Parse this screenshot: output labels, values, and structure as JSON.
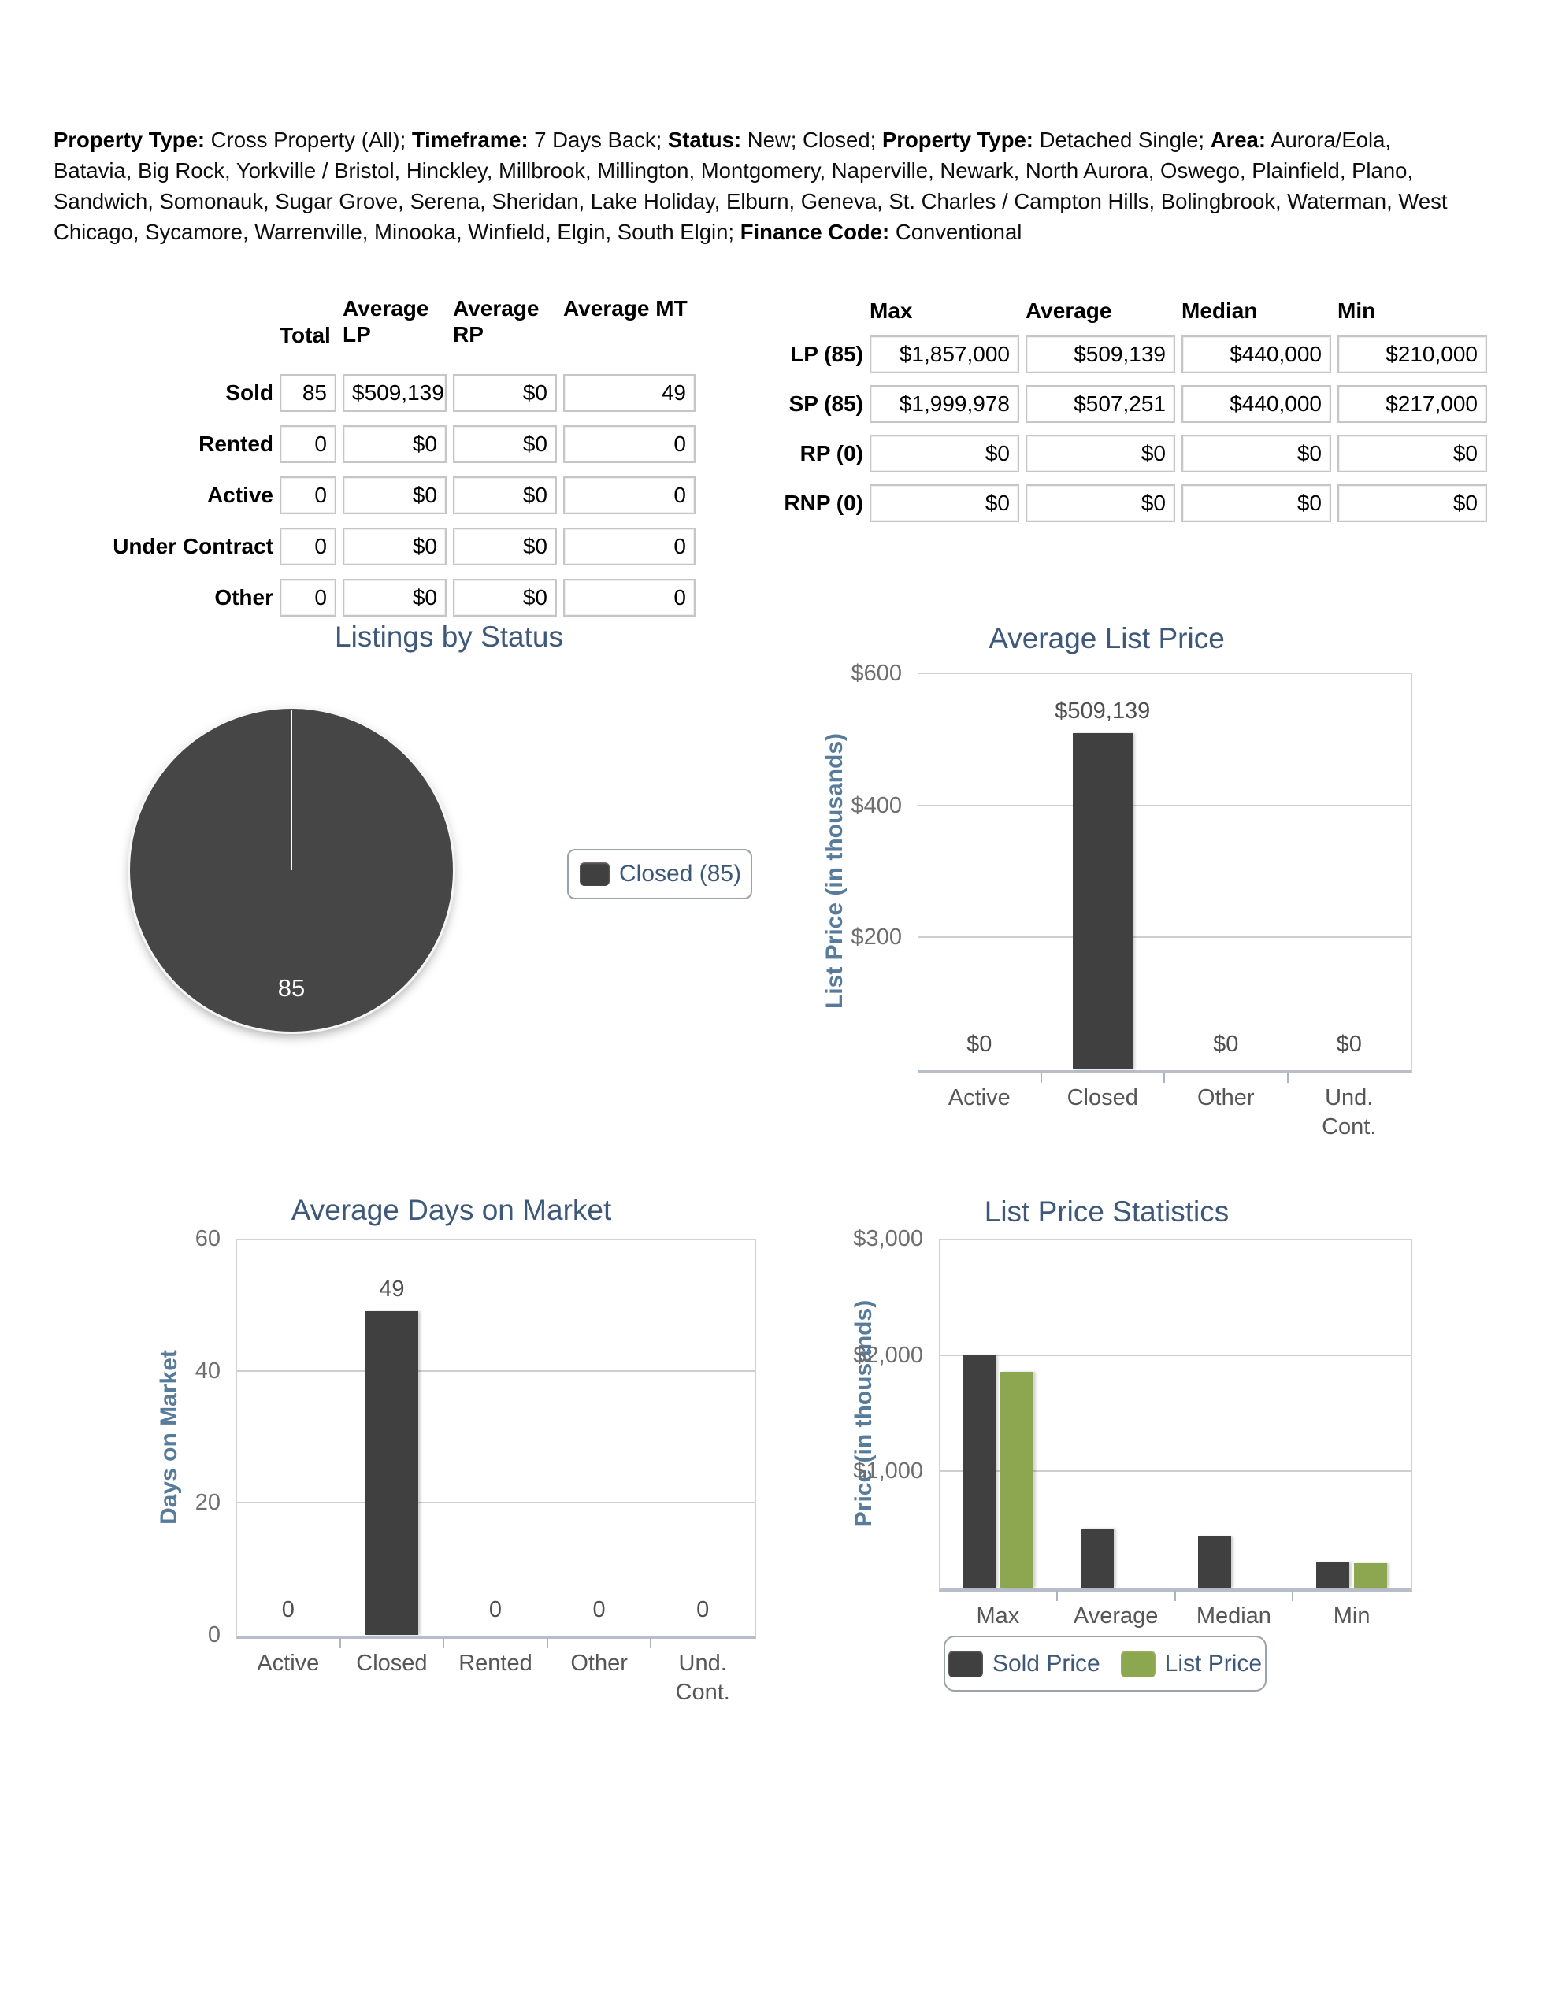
{
  "header": {
    "segments": [
      {
        "label": "Property Type:",
        "value": " Cross Property (All); "
      },
      {
        "label": "Timeframe:",
        "value": " 7 Days Back; "
      },
      {
        "label": "Status:",
        "value": " New; Closed; "
      },
      {
        "label": "Property Type:",
        "value": " Detached Single; "
      },
      {
        "label": "Area:",
        "value": " Aurora/Eola, Batavia, Big Rock, Yorkville / Bristol, Hinckley, Millbrook, Millington, Montgomery, Naperville, Newark, North Aurora, Oswego, Plainfield, Plano, Sandwich, Somonauk, Sugar Grove, Serena, Sheridan, Lake Holiday, Elburn, Geneva, St. Charles / Campton Hills, Bolingbrook, Waterman, West Chicago, Sycamore, Warrenville, Minooka, Winfield, Elgin, South Elgin; "
      },
      {
        "label": "Finance Code:",
        "value": " Conventional"
      }
    ]
  },
  "status_table": {
    "columns": [
      "Total",
      "Average LP",
      "Average RP",
      "Average MT"
    ],
    "rows": [
      {
        "label": "Sold",
        "values": [
          "85",
          "$509,139",
          "$0",
          "49"
        ]
      },
      {
        "label": "Rented",
        "values": [
          "0",
          "$0",
          "$0",
          "0"
        ]
      },
      {
        "label": "Active",
        "values": [
          "0",
          "$0",
          "$0",
          "0"
        ]
      },
      {
        "label": "Under Contract",
        "values": [
          "0",
          "$0",
          "$0",
          "0"
        ]
      },
      {
        "label": "Other",
        "values": [
          "0",
          "$0",
          "$0",
          "0"
        ]
      }
    ]
  },
  "price_table": {
    "columns": [
      "Max",
      "Average",
      "Median",
      "Min"
    ],
    "rows": [
      {
        "label": "LP (85)",
        "values": [
          "$1,857,000",
          "$509,139",
          "$440,000",
          "$210,000"
        ]
      },
      {
        "label": "SP (85)",
        "values": [
          "$1,999,978",
          "$507,251",
          "$440,000",
          "$217,000"
        ]
      },
      {
        "label": "RP (0)",
        "values": [
          "$0",
          "$0",
          "$0",
          "$0"
        ]
      },
      {
        "label": "RNP (0)",
        "values": [
          "$0",
          "$0",
          "$0",
          "$0"
        ]
      }
    ]
  },
  "colors": {
    "chart_title": "#3e587a",
    "axis_label": "#567b9b",
    "sold_dark": "#404040",
    "list_green": "#8ca750",
    "pie_fill": "#464646"
  },
  "chart_data": [
    {
      "id": "listings_by_status",
      "type": "pie",
      "title": "Listings by Status",
      "slices": [
        {
          "label": "Closed",
          "value": 85,
          "data_label": "85",
          "color": "#464646"
        }
      ],
      "legend": [
        {
          "label": "Closed (85)",
          "color": "#464646"
        }
      ],
      "legend_position": "right"
    },
    {
      "id": "average_list_price",
      "type": "bar",
      "title": "Average List Price",
      "ylabel": "List Price (in thousands)",
      "ylim": [
        0,
        600
      ],
      "yticks": [
        {
          "label": "$600",
          "value": 600
        },
        {
          "label": "$400",
          "value": 400
        },
        {
          "label": "$200",
          "value": 200
        }
      ],
      "categories": [
        "Active",
        "Closed",
        "Other",
        "Und.\nCont."
      ],
      "values": [
        0,
        509.139,
        0,
        0
      ],
      "bar_labels": [
        "$0",
        "$509,139",
        "$0",
        "$0"
      ],
      "bar_color": "#404040",
      "grid": true
    },
    {
      "id": "average_days_on_market",
      "type": "bar",
      "title": "Average Days on Market",
      "ylabel": "Days on Market",
      "ylim": [
        0,
        60
      ],
      "yticks": [
        {
          "label": "60",
          "value": 60
        },
        {
          "label": "40",
          "value": 40
        },
        {
          "label": "20",
          "value": 20
        },
        {
          "label": "0",
          "value": 0
        }
      ],
      "categories": [
        "Active",
        "Closed",
        "Rented",
        "Other",
        "Und.\nCont."
      ],
      "values": [
        0,
        49,
        0,
        0,
        0
      ],
      "bar_labels": [
        "0",
        "49",
        "0",
        "0",
        "0"
      ],
      "bar_color": "#404040",
      "grid": true
    },
    {
      "id": "list_price_statistics",
      "type": "bar",
      "title": "List Price Statistics",
      "ylabel": "Price (in thousands)",
      "ylim": [
        0,
        3000
      ],
      "yticks": [
        {
          "label": "$3,000",
          "value": 3000
        },
        {
          "label": "$2,000",
          "value": 2000
        },
        {
          "label": "$1,000",
          "value": 1000
        }
      ],
      "categories": [
        "Max",
        "Average",
        "Median",
        "Min"
      ],
      "series": [
        {
          "name": "Sold Price",
          "color": "#404040",
          "values": [
            1999.978,
            507.251,
            440,
            217
          ]
        },
        {
          "name": "List Price",
          "color": "#8ca750",
          "values": [
            1857,
            null,
            null,
            210
          ]
        }
      ],
      "legend": [
        {
          "label": "Sold Price",
          "color": "#404040"
        },
        {
          "label": "List Price",
          "color": "#8ca750"
        }
      ],
      "legend_position": "bottom",
      "grid": true
    }
  ]
}
